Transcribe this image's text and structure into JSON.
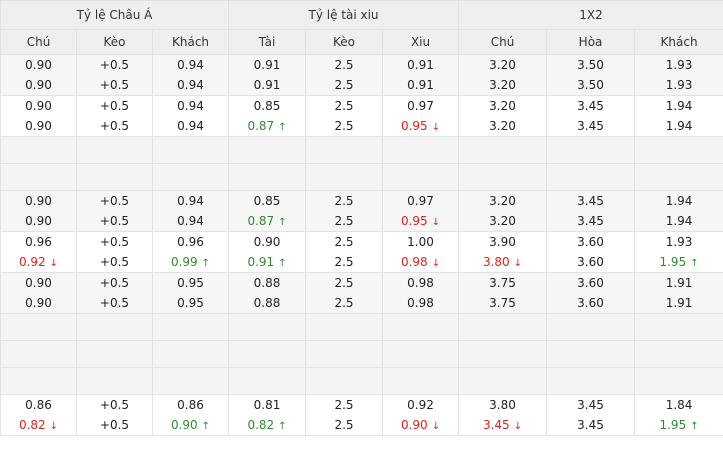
{
  "header": {
    "groups": [
      "Tỷ lệ Châu Á",
      "Tỷ lệ tài xiu",
      "1X2"
    ],
    "columns": [
      "Chú",
      "Kèo",
      "Khách",
      "Tài",
      "Kèo",
      "Xiu",
      "Chú",
      "Hòa",
      "Khách"
    ]
  },
  "rows": [
    {
      "type": "data",
      "alt": true,
      "cells": [
        {
          "top": "0.90",
          "bottom": "0.90"
        },
        {
          "top": "+0.5",
          "bottom": "+0.5"
        },
        {
          "top": "0.94",
          "bottom": "0.94"
        },
        {
          "top": "0.91",
          "bottom": "0.91"
        },
        {
          "top": "2.5",
          "bottom": "2.5"
        },
        {
          "top": "0.91",
          "bottom": "0.91"
        },
        {
          "top": "3.20",
          "bottom": "3.20"
        },
        {
          "top": "3.50",
          "bottom": "3.50"
        },
        {
          "top": "1.93",
          "bottom": "1.93"
        }
      ]
    },
    {
      "type": "data",
      "alt": false,
      "cells": [
        {
          "top": "0.90",
          "bottom": "0.90"
        },
        {
          "top": "+0.5",
          "bottom": "+0.5"
        },
        {
          "top": "0.94",
          "bottom": "0.94"
        },
        {
          "top": "0.85",
          "bottom": "0.87",
          "trend": "up"
        },
        {
          "top": "2.5",
          "bottom": "2.5"
        },
        {
          "top": "0.97",
          "bottom": "0.95",
          "trend": "down"
        },
        {
          "top": "3.20",
          "bottom": "3.20"
        },
        {
          "top": "3.45",
          "bottom": "3.45"
        },
        {
          "top": "1.94",
          "bottom": "1.94"
        }
      ]
    },
    {
      "type": "blank"
    },
    {
      "type": "blank"
    },
    {
      "type": "data",
      "alt": true,
      "cells": [
        {
          "top": "0.90",
          "bottom": "0.90"
        },
        {
          "top": "+0.5",
          "bottom": "+0.5"
        },
        {
          "top": "0.94",
          "bottom": "0.94"
        },
        {
          "top": "0.85",
          "bottom": "0.87",
          "trend": "up"
        },
        {
          "top": "2.5",
          "bottom": "2.5"
        },
        {
          "top": "0.97",
          "bottom": "0.95",
          "trend": "down"
        },
        {
          "top": "3.20",
          "bottom": "3.20"
        },
        {
          "top": "3.45",
          "bottom": "3.45"
        },
        {
          "top": "1.94",
          "bottom": "1.94"
        }
      ]
    },
    {
      "type": "data",
      "alt": false,
      "cells": [
        {
          "top": "0.96",
          "bottom": "0.92",
          "trend": "down"
        },
        {
          "top": "+0.5",
          "bottom": "+0.5"
        },
        {
          "top": "0.96",
          "bottom": "0.99",
          "trend": "up"
        },
        {
          "top": "0.90",
          "bottom": "0.91",
          "trend": "up"
        },
        {
          "top": "2.5",
          "bottom": "2.5"
        },
        {
          "top": "1.00",
          "bottom": "0.98",
          "trend": "down"
        },
        {
          "top": "3.90",
          "bottom": "3.80",
          "trend": "down"
        },
        {
          "top": "3.60",
          "bottom": "3.60"
        },
        {
          "top": "1.93",
          "bottom": "1.95",
          "trend": "up"
        }
      ]
    },
    {
      "type": "data",
      "alt": true,
      "cells": [
        {
          "top": "0.90",
          "bottom": "0.90"
        },
        {
          "top": "+0.5",
          "bottom": "+0.5"
        },
        {
          "top": "0.95",
          "bottom": "0.95"
        },
        {
          "top": "0.88",
          "bottom": "0.88"
        },
        {
          "top": "2.5",
          "bottom": "2.5"
        },
        {
          "top": "0.98",
          "bottom": "0.98"
        },
        {
          "top": "3.75",
          "bottom": "3.75"
        },
        {
          "top": "3.60",
          "bottom": "3.60"
        },
        {
          "top": "1.91",
          "bottom": "1.91"
        }
      ]
    },
    {
      "type": "blank"
    },
    {
      "type": "blank"
    },
    {
      "type": "blank"
    },
    {
      "type": "data",
      "alt": false,
      "cells": [
        {
          "top": "0.86",
          "bottom": "0.82",
          "trend": "down"
        },
        {
          "top": "+0.5",
          "bottom": "+0.5"
        },
        {
          "top": "0.86",
          "bottom": "0.90",
          "trend": "up"
        },
        {
          "top": "0.81",
          "bottom": "0.82",
          "trend": "up"
        },
        {
          "top": "2.5",
          "bottom": "2.5"
        },
        {
          "top": "0.92",
          "bottom": "0.90",
          "trend": "down"
        },
        {
          "top": "3.80",
          "bottom": "3.45",
          "trend": "down"
        },
        {
          "top": "3.45",
          "bottom": "3.45"
        },
        {
          "top": "1.84",
          "bottom": "1.95",
          "trend": "up"
        }
      ]
    }
  ],
  "trend_colors": {
    "up": "#2e8b2e",
    "down": "#d8251f"
  },
  "trend_icons": {
    "up": "arrow-up-icon",
    "down": "arrow-down-icon"
  }
}
